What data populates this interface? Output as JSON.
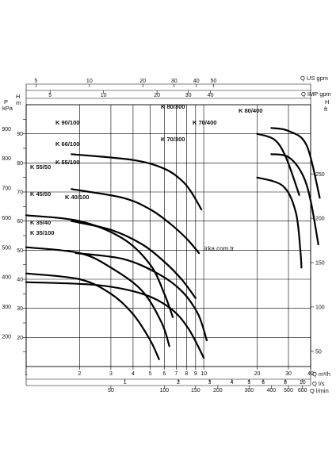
{
  "chart_data": {
    "type": "line",
    "x_scale": "log",
    "xlim": [
      1,
      40
    ],
    "ylim": [
      10,
      100
    ],
    "grid": true,
    "axes": {
      "left_outer": {
        "labels": [
          "P",
          "kPa"
        ],
        "ticks": [
          {
            "v": 900,
            "label": "900"
          },
          {
            "v": 800,
            "label": "800"
          },
          {
            "v": 700,
            "label": "700"
          },
          {
            "v": 600,
            "label": "600"
          },
          {
            "v": 500,
            "label": "500"
          },
          {
            "v": 400,
            "label": "400"
          },
          {
            "v": 300,
            "label": "300"
          },
          {
            "v": 200,
            "label": "200"
          }
        ]
      },
      "left_inner": {
        "labels": [
          "H",
          "m"
        ],
        "ticks": [
          {
            "v": 90,
            "label": "90"
          },
          {
            "v": 80,
            "label": "80"
          },
          {
            "v": 70,
            "label": "70"
          },
          {
            "v": 60,
            "label": "60"
          },
          {
            "v": 50,
            "label": "50"
          },
          {
            "v": 40,
            "label": "40"
          },
          {
            "v": 30,
            "label": "30"
          },
          {
            "v": 20,
            "label": "20"
          }
        ]
      },
      "right": {
        "labels": [
          "H",
          "ft"
        ],
        "ticks": [
          {
            "v": 250,
            "label": "250"
          },
          {
            "v": 200,
            "label": "200"
          },
          {
            "v": 150,
            "label": "150"
          },
          {
            "v": 100,
            "label": "100"
          },
          {
            "v": 50,
            "label": "50"
          }
        ]
      },
      "top_us": {
        "label": "Q US gpm",
        "ticks": [
          {
            "v": 5,
            "label": "5"
          },
          {
            "v": 10,
            "label": "10"
          },
          {
            "v": 20,
            "label": "20"
          },
          {
            "v": 30,
            "label": "30"
          },
          {
            "v": 40,
            "label": "40"
          },
          {
            "v": 50,
            "label": "50"
          }
        ]
      },
      "top_imp": {
        "label": "Q IMP gpm",
        "ticks": [
          {
            "v": 5,
            "label": "5"
          },
          {
            "v": 10,
            "label": "10"
          },
          {
            "v": 20,
            "label": "20"
          },
          {
            "v": 30,
            "label": "30"
          },
          {
            "v": 40,
            "label": "40"
          }
        ]
      },
      "bottom_m3h": {
        "label": "Q m³/h",
        "ticks": [
          {
            "v": 1,
            "label": "1"
          },
          {
            "v": 2,
            "label": "2"
          },
          {
            "v": 3,
            "label": "3"
          },
          {
            "v": 4,
            "label": "4"
          },
          {
            "v": 5,
            "label": "5"
          },
          {
            "v": 6,
            "label": "6"
          },
          {
            "v": 7,
            "label": "7"
          },
          {
            "v": 8,
            "label": "8"
          },
          {
            "v": 9,
            "label": "9"
          },
          {
            "v": 10,
            "label": "10"
          },
          {
            "v": 20,
            "label": "20"
          },
          {
            "v": 30,
            "label": "30"
          },
          {
            "v": 40,
            "label": "40"
          }
        ]
      },
      "bottom_ls": {
        "label": "Q l/s",
        "ticks": [
          {
            "v": 1,
            "label": "1"
          },
          {
            "v": 2,
            "label": "2"
          },
          {
            "v": 3,
            "label": "3"
          },
          {
            "v": 4,
            "label": "4"
          },
          {
            "v": 5,
            "label": "5"
          },
          {
            "v": 6,
            "label": "6"
          },
          {
            "v": 8,
            "label": "8"
          },
          {
            "v": 10,
            "label": "10"
          }
        ]
      },
      "bottom_lmin": {
        "label": "Q l/min",
        "ticks": [
          {
            "v": 50,
            "label": "50"
          },
          {
            "v": 100,
            "label": "100"
          },
          {
            "v": 150,
            "label": "150"
          },
          {
            "v": 200,
            "label": "200"
          },
          {
            "v": 300,
            "label": "300"
          },
          {
            "v": 400,
            "label": "400"
          },
          {
            "v": 500,
            "label": "500"
          },
          {
            "v": 600,
            "label": "600"
          }
        ]
      }
    },
    "series": [
      {
        "name": "K 90/100",
        "x": [
          1.8,
          4.0,
          6.0,
          7.5,
          8.5,
          9.7
        ],
        "y": [
          83,
          81,
          78,
          74,
          70,
          64
        ]
      },
      {
        "name": "K 66/100",
        "x": [
          1.8,
          3.5,
          5.0,
          6.5,
          8.0,
          9.4
        ],
        "y": [
          71,
          68,
          64,
          59,
          54,
          49
        ]
      },
      {
        "name": "K 55/100",
        "x": [
          1.8,
          3.0,
          4.5,
          6.0,
          7.5,
          9.0
        ],
        "y": [
          60,
          57,
          52,
          46,
          40,
          33.5
        ]
      },
      {
        "name": "K 55/50",
        "x": [
          1.0,
          2.0,
          3.5,
          5.0,
          6.0,
          6.7
        ],
        "y": [
          62,
          60,
          54,
          45,
          35,
          27
        ]
      },
      {
        "name": "K 45/50",
        "x": [
          1.0,
          2.0,
          3.0,
          4.5,
          5.8,
          6.4
        ],
        "y": [
          51,
          49,
          44,
          36,
          25,
          17
        ]
      },
      {
        "name": "K 40/100",
        "x": [
          1.9,
          3.5,
          5.5,
          7.5,
          9.3,
          10.4
        ],
        "y": [
          49,
          47,
          42,
          36,
          28,
          19
        ]
      },
      {
        "name": "K 35/40",
        "x": [
          1.0,
          2.0,
          3.0,
          4.0,
          5.0,
          5.6
        ],
        "y": [
          42,
          40,
          35,
          28,
          19,
          12.5
        ]
      },
      {
        "name": "K 35/100",
        "x": [
          1.0,
          2.5,
          4.5,
          6.5,
          8.2,
          10.0
        ],
        "y": [
          39,
          38,
          35,
          30,
          23,
          13
        ]
      },
      {
        "name": "K 80/300",
        "x": [
          20.0,
          25.0,
          29.0,
          34.5
        ],
        "y": [
          90,
          88,
          82,
          69
        ]
      },
      {
        "name": "K 70/300",
        "x": [
          20.0,
          28.0,
          33.0,
          35.0,
          35.5
        ],
        "y": [
          75,
          72,
          63,
          50,
          44
        ]
      },
      {
        "name": "K 80/400",
        "x": [
          24.0,
          30.0,
          38.0,
          45.0
        ],
        "y": [
          92,
          91,
          86,
          68
        ]
      },
      {
        "name": "K 70/400",
        "x": [
          24.0,
          30.0,
          36.0,
          40.0,
          44.2
        ],
        "y": [
          83,
          82,
          76,
          67,
          52
        ]
      }
    ],
    "annotations": [
      "irka.com.tr"
    ]
  }
}
